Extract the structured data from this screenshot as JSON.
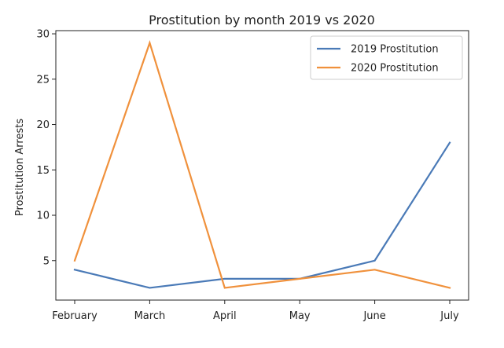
{
  "chart_data": {
    "type": "line",
    "title": "Prostitution by month 2019 vs 2020",
    "xlabel": "",
    "ylabel": "Prostitution Arrests",
    "categories": [
      "February",
      "March",
      "April",
      "May",
      "June",
      "July"
    ],
    "series": [
      {
        "name": "2019 Prostitution",
        "values": [
          4,
          2,
          3,
          3,
          5,
          18
        ],
        "color": "#4a7ab7"
      },
      {
        "name": "2020 Prostitution",
        "values": [
          5,
          29,
          2,
          3,
          4,
          2
        ],
        "color": "#f0913c"
      }
    ],
    "ylim": [
      0.65,
      30.35
    ],
    "yticks": [
      5,
      10,
      15,
      20,
      25,
      30
    ],
    "grid": false,
    "legend": "top-right"
  }
}
